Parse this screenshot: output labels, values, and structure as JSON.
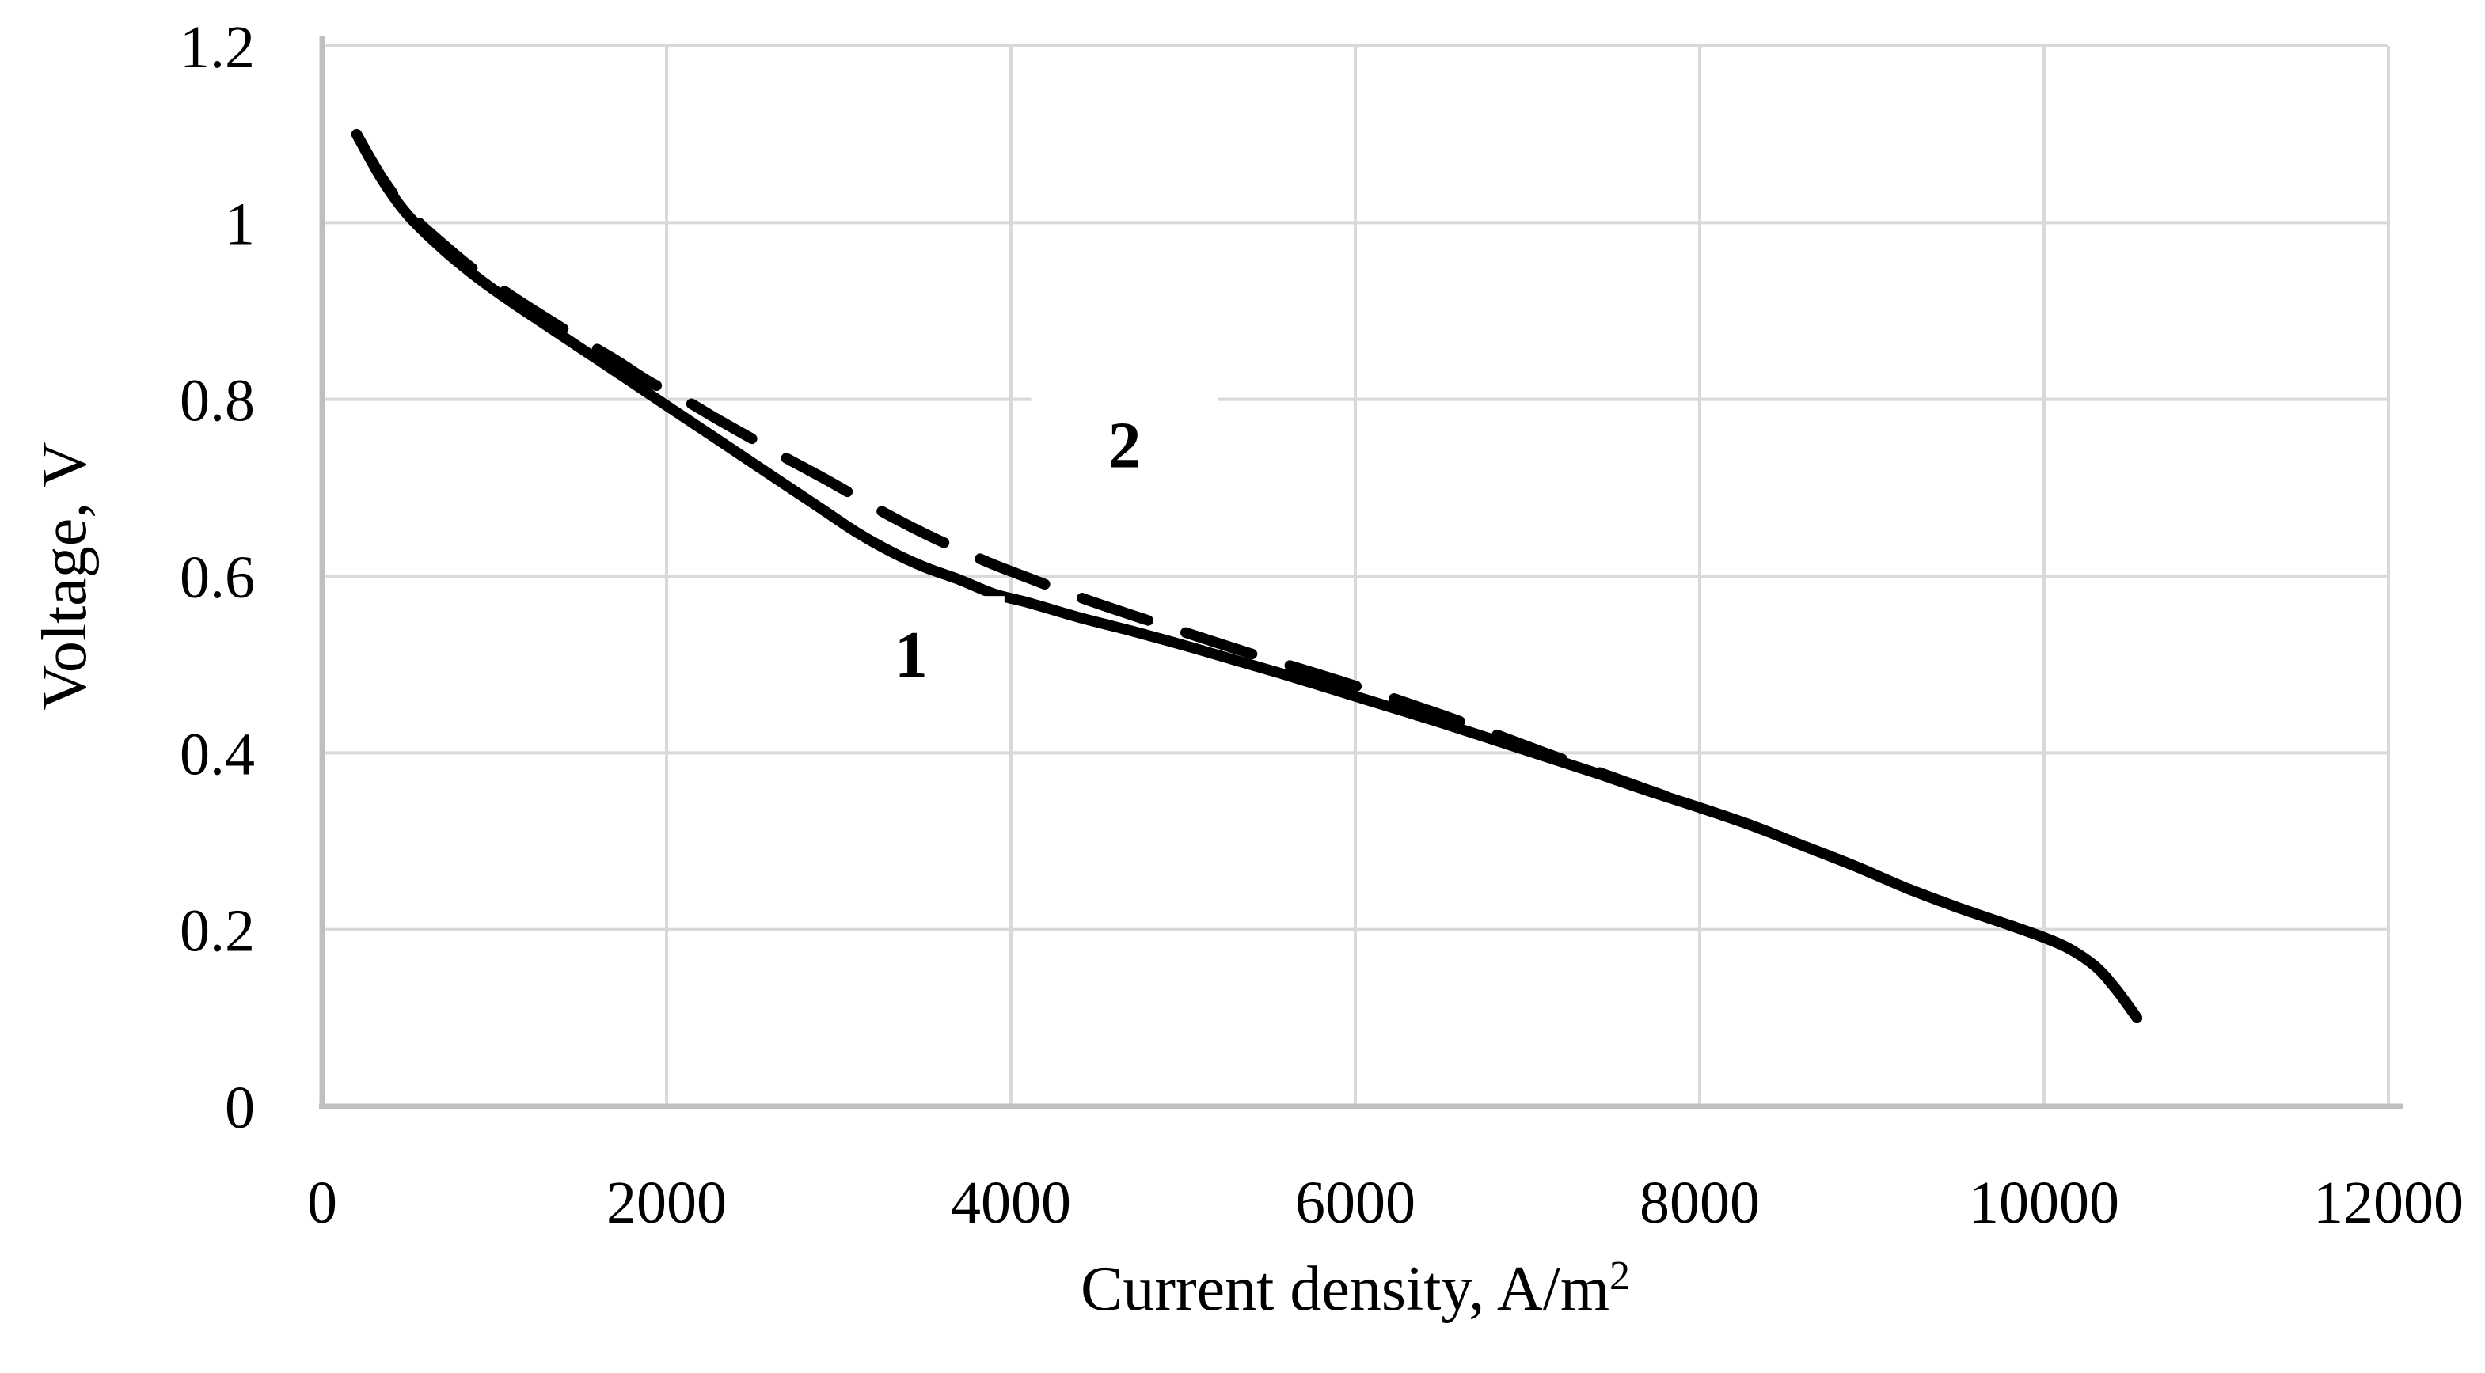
{
  "chart_data": {
    "type": "line",
    "title": "",
    "xlabel": "Current density, A/m²",
    "xlabel_main": "Current density, A/m",
    "xlabel_sup": "2",
    "ylabel": "Voltage, V",
    "xlim": [
      0,
      12000
    ],
    "ylim": [
      0,
      1.2
    ],
    "x_ticks": [
      0,
      2000,
      4000,
      6000,
      8000,
      10000,
      12000
    ],
    "x_tick_labels": [
      "0",
      "2000",
      "4000",
      "6000",
      "8000",
      "10000",
      "12000"
    ],
    "y_ticks": [
      0,
      0.2,
      0.4,
      0.6,
      0.8,
      1,
      1.2
    ],
    "y_tick_labels": [
      "0",
      "0.2",
      "0.4",
      "0.6",
      "0.8",
      "1",
      "1.2"
    ],
    "grid": true,
    "legend_position": "none",
    "colors": {
      "background": "#ffffff",
      "grid": "#d9d9d9",
      "axis": "#bfbfbf",
      "line": "#000000",
      "text": "#000000"
    },
    "series": [
      {
        "name": "1",
        "style": "solid",
        "x": [
          200,
          350,
          500,
          700,
          900,
          1100,
          1300,
          1500,
          1700,
          1900,
          2100,
          2300,
          2500,
          2700,
          2900,
          3100,
          3300,
          3500,
          3700,
          3900,
          4100,
          4400,
          4700,
          5000,
          5300,
          5600,
          5900,
          6200,
          6500,
          6800,
          7100,
          7400,
          7700,
          8000,
          8300,
          8600,
          8900,
          9200,
          9500,
          9800,
          10000,
          10150,
          10300,
          10420,
          10540
        ],
        "y": [
          1.1,
          1.048,
          1.008,
          0.97,
          0.938,
          0.91,
          0.884,
          0.858,
          0.832,
          0.806,
          0.78,
          0.754,
          0.728,
          0.702,
          0.676,
          0.65,
          0.628,
          0.61,
          0.596,
          0.58,
          0.57,
          0.553,
          0.538,
          0.522,
          0.505,
          0.488,
          0.47,
          0.452,
          0.434,
          0.415,
          0.396,
          0.377,
          0.357,
          0.338,
          0.318,
          0.295,
          0.272,
          0.247,
          0.225,
          0.205,
          0.191,
          0.178,
          0.158,
          0.132,
          0.1
        ]
      },
      {
        "name": "2",
        "style": "dashed",
        "x": [
          200,
          350,
          500,
          700,
          900,
          1100,
          1300,
          1500,
          1700,
          1900,
          2100,
          2300,
          2500,
          2700,
          2900,
          3100,
          3300,
          3500,
          3700,
          3900,
          4100,
          4400,
          4700,
          5000,
          5300,
          5600,
          5900,
          6200,
          6500,
          6800,
          7100,
          7400,
          7700,
          8000,
          8300,
          8600,
          8900,
          9200,
          9500,
          9800,
          10000,
          10150,
          10300,
          10420,
          10540
        ],
        "y": [
          1.1,
          1.05,
          1.012,
          0.976,
          0.944,
          0.917,
          0.892,
          0.868,
          0.845,
          0.82,
          0.8,
          0.777,
          0.755,
          0.733,
          0.712,
          0.69,
          0.668,
          0.648,
          0.63,
          0.613,
          0.598,
          0.576,
          0.556,
          0.537,
          0.518,
          0.5,
          0.482,
          0.463,
          0.443,
          0.422,
          0.4,
          0.379,
          0.358,
          0.338,
          0.318,
          0.295,
          0.272,
          0.247,
          0.225,
          0.205,
          0.191,
          0.178,
          0.158,
          0.132,
          0.1
        ]
      }
    ],
    "annotations": [
      {
        "label": "1",
        "x": 3420,
        "y": 0.513
      },
      {
        "label": "2",
        "x": 4660,
        "y": 0.75
      }
    ]
  }
}
